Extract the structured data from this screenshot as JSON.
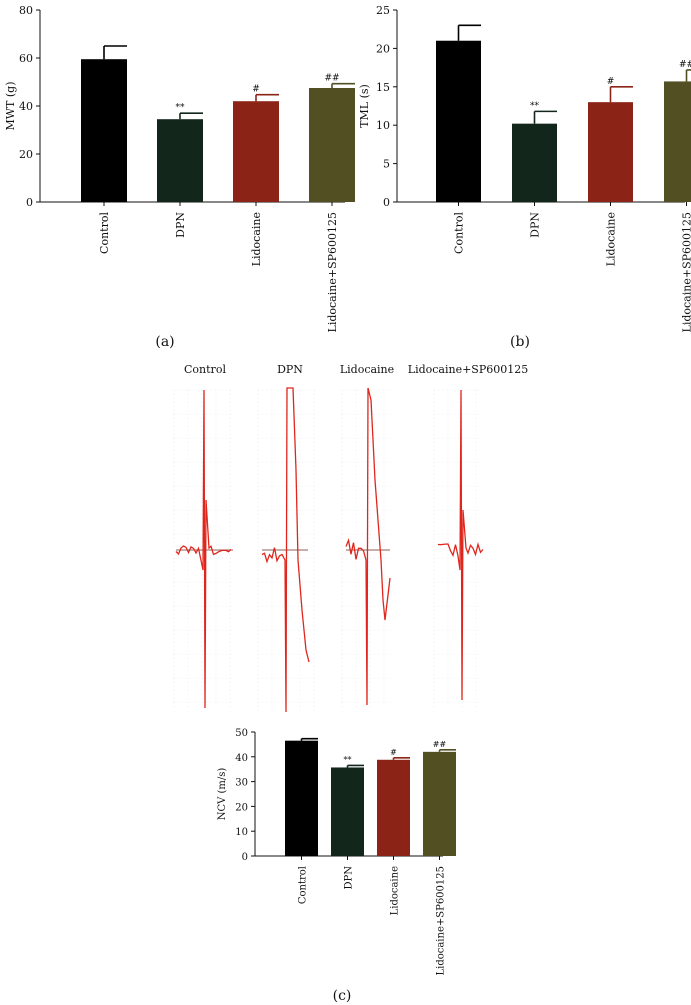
{
  "panels": {
    "a": "(a)",
    "b": "(b)",
    "c": "(c)"
  },
  "colors": {
    "Control": "#000000",
    "DPN": "#13261c",
    "Lidocaine": "#8b2416",
    "Lidocaine+SP600125": "#525022",
    "trace": "#e0261c",
    "trace_grid": "#c5cbd8"
  },
  "trace_labels": [
    "Control",
    "DPN",
    "Lidocaine",
    "Lidocaine+SP600125"
  ],
  "chart_data": [
    {
      "type": "bar",
      "panel": "a",
      "ylabel": "MWT (g)",
      "ylim": [
        0,
        80
      ],
      "yticks": [
        0,
        20,
        40,
        60,
        80
      ],
      "categories": [
        "Control",
        "DPN",
        "Lidocaine",
        "Lidocaine+SP600125"
      ],
      "values": [
        59.5,
        34.5,
        42,
        47.5
      ],
      "errors": [
        5.5,
        2.5,
        2.7,
        1.8
      ],
      "annotations": [
        "",
        "**",
        "#",
        "##"
      ]
    },
    {
      "type": "bar",
      "panel": "b",
      "ylabel": "TML (s)",
      "ylim": [
        0,
        25
      ],
      "yticks": [
        0,
        5,
        10,
        15,
        20,
        25
      ],
      "categories": [
        "Control",
        "DPN",
        "Lidocaine",
        "Lidocaine+SP600125"
      ],
      "values": [
        21,
        10.2,
        13,
        15.7
      ],
      "errors": [
        2,
        1.6,
        2,
        1.5
      ],
      "annotations": [
        "",
        "**",
        "#",
        "##"
      ]
    },
    {
      "type": "bar",
      "panel": "c",
      "ylabel": "NCV (m/s)",
      "ylim": [
        0,
        50
      ],
      "yticks": [
        0,
        10,
        20,
        30,
        40,
        50
      ],
      "categories": [
        "Control",
        "DPN",
        "Lidocaine",
        "Lidocaine+SP600125"
      ],
      "values": [
        46.5,
        35.7,
        38.8,
        42
      ],
      "errors": [
        0.8,
        0.8,
        0.8,
        0.8
      ],
      "annotations": [
        "",
        "**",
        "#",
        "##"
      ]
    }
  ]
}
